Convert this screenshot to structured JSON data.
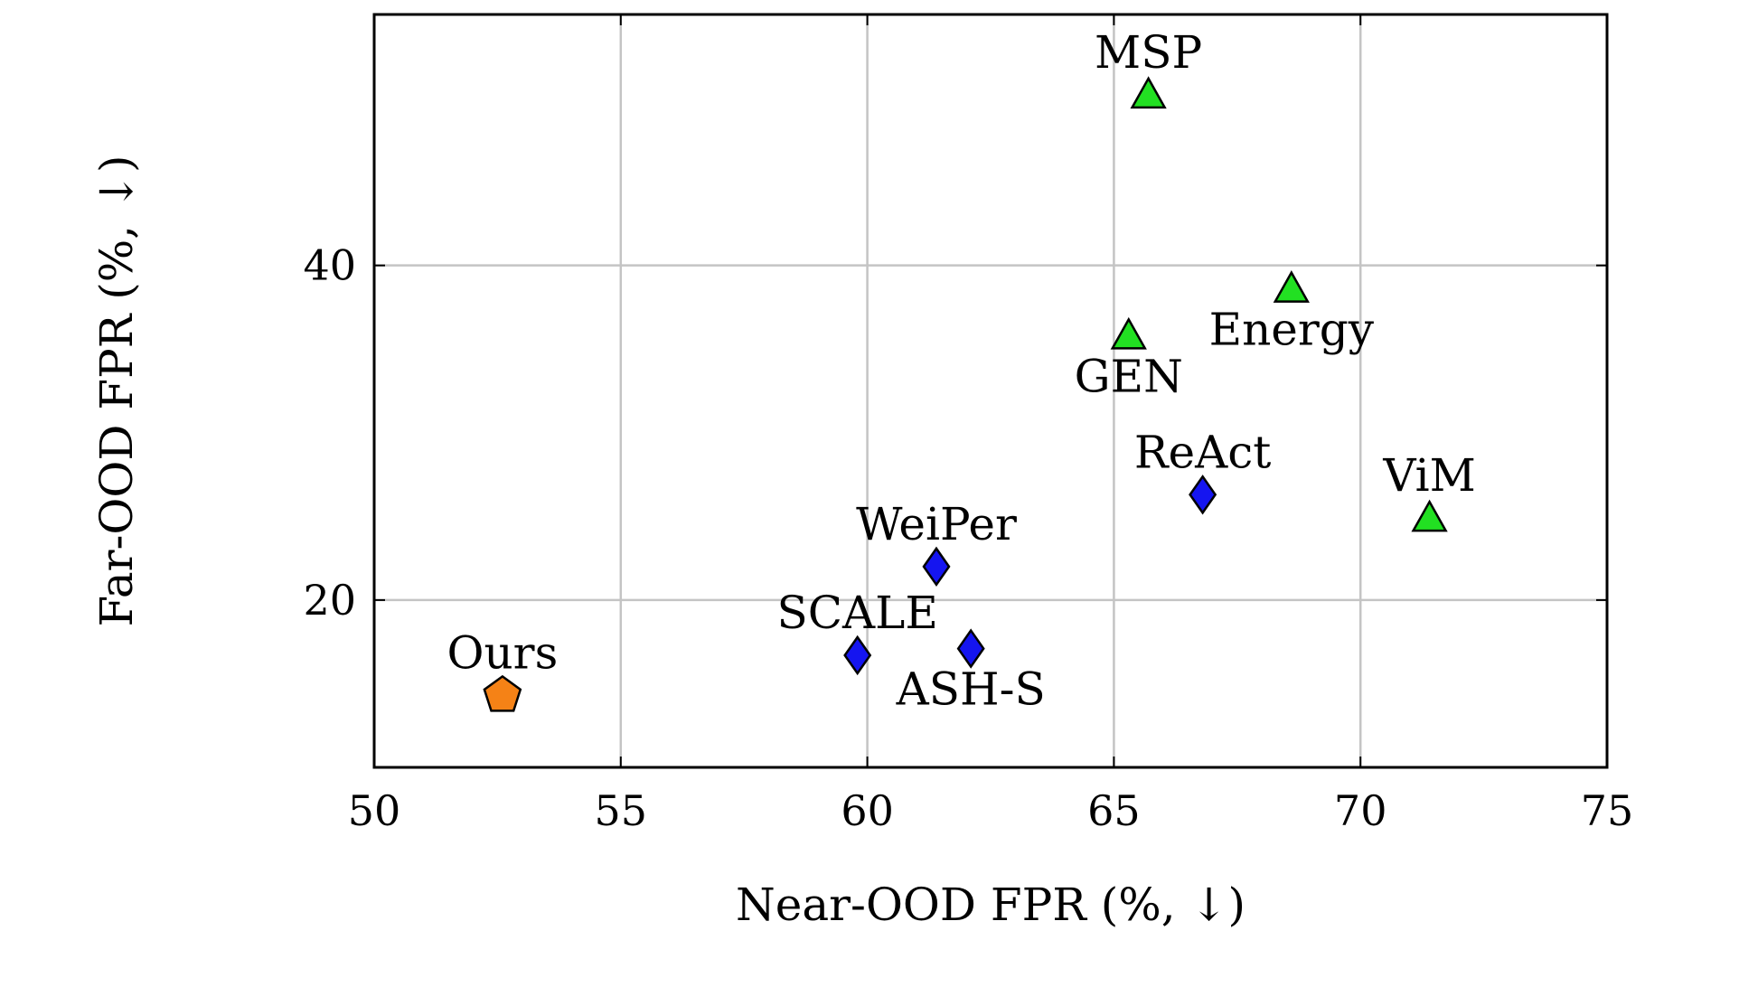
{
  "chart_data": {
    "type": "scatter",
    "title": "",
    "xlabel": "Near-OOD FPR (%, ↓)",
    "ylabel": "Far-OOD FPR (%, ↓)",
    "xlim": [
      50,
      75
    ],
    "ylim": [
      10,
      55
    ],
    "xticks": [
      50,
      55,
      60,
      65,
      70,
      75
    ],
    "yticks": [
      20,
      40
    ],
    "grid": true,
    "legend": "none",
    "points": [
      {
        "label": "MSP",
        "x": 65.7,
        "y": 50.2,
        "marker": "triangle",
        "color": "#22e022",
        "label_pos": "above"
      },
      {
        "label": "Energy",
        "x": 68.6,
        "y": 38.6,
        "marker": "triangle",
        "color": "#22e022",
        "label_pos": "below"
      },
      {
        "label": "GEN",
        "x": 65.3,
        "y": 35.8,
        "marker": "triangle",
        "color": "#22e022",
        "label_pos": "below"
      },
      {
        "label": "ViM",
        "x": 71.4,
        "y": 24.9,
        "marker": "triangle",
        "color": "#22e022",
        "label_pos": "above"
      },
      {
        "label": "ReAct",
        "x": 66.8,
        "y": 26.3,
        "marker": "diamond",
        "color": "#1515f0",
        "label_pos": "above"
      },
      {
        "label": "WeiPer",
        "x": 61.4,
        "y": 22.0,
        "marker": "diamond",
        "color": "#1515f0",
        "label_pos": "above"
      },
      {
        "label": "SCALE",
        "x": 59.8,
        "y": 16.7,
        "marker": "diamond",
        "color": "#1515f0",
        "label_pos": "above"
      },
      {
        "label": "ASH-S",
        "x": 62.1,
        "y": 17.1,
        "marker": "diamond",
        "color": "#1515f0",
        "label_pos": "below"
      },
      {
        "label": "Ours",
        "x": 52.6,
        "y": 14.3,
        "marker": "pentagon",
        "color": "#f58216",
        "label_pos": "above"
      }
    ]
  }
}
